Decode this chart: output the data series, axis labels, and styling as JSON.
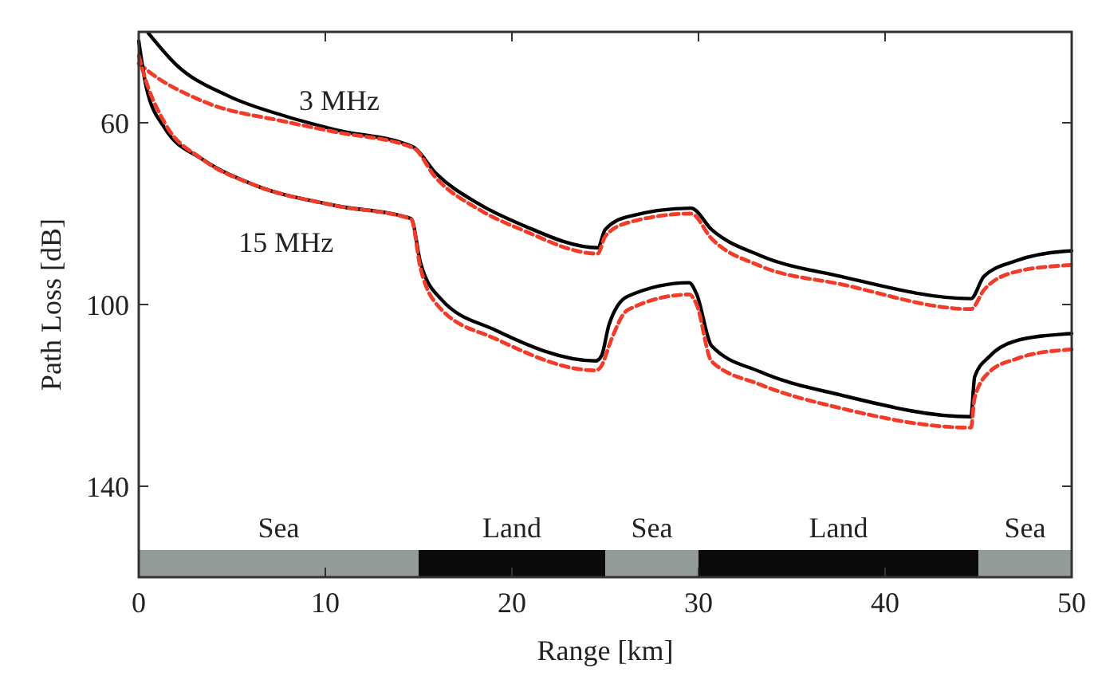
{
  "chart_data": {
    "type": "line",
    "xlabel": "Range [km]",
    "ylabel": "Path Loss [dB]",
    "xlim": [
      0,
      50
    ],
    "xticks": [
      0,
      10,
      20,
      30,
      40,
      50
    ],
    "ylim": [
      160,
      40
    ],
    "yticks": [
      60,
      100,
      140
    ],
    "grid": false,
    "marker": "none",
    "series": [
      {
        "color": "#000000",
        "line_style": "solid",
        "x": [
          0.5,
          2,
          4.8,
          7.9,
          10.5,
          14.7,
          15.9,
          18.2,
          20.5,
          24.6,
          25,
          26.2,
          29.6,
          30.7,
          33.3,
          37.6,
          44.6,
          45.3,
          47,
          49.6,
          50
        ],
        "values": [
          40.2,
          47.2,
          54.1,
          58.6,
          61.5,
          65.3,
          71,
          77.8,
          82.4,
          87.5,
          83.5,
          80.7,
          78.8,
          83.5,
          89.2,
          93.8,
          98.7,
          93.8,
          90.4,
          88.3,
          88.2
        ]
      },
      {
        "color": "#f03c28",
        "line_style": "dashed",
        "x": [
          0,
          0.5,
          3.4,
          7.9,
          10.5,
          14.7,
          15.9,
          18.2,
          20.5,
          24.6,
          25,
          26.2,
          29.6,
          30.7,
          33.3,
          37.6,
          44.6,
          45.3,
          47,
          49.6,
          50
        ],
        "values": [
          46.9,
          48.6,
          55.2,
          59.8,
          62,
          65.5,
          72,
          79,
          83.5,
          88.8,
          85,
          82,
          80,
          85.5,
          91.5,
          95.5,
          101,
          96.8,
          92.8,
          91.4,
          91.3
        ]
      },
      {
        "color": "#000000",
        "line_style": "solid",
        "x": [
          0,
          0.4,
          1.4,
          3.4,
          6.2,
          10.5,
          14.6,
          15.1,
          16.2,
          19.1,
          24.5,
          24.8,
          25.2,
          26.2,
          29.5,
          29.9,
          30.7,
          33.3,
          37.6,
          44.6,
          44.8,
          45.6,
          47,
          49.6,
          50
        ],
        "values": [
          42,
          52.1,
          61.2,
          68,
          73.7,
          78.2,
          81.1,
          90.8,
          98.8,
          105.6,
          112.4,
          111.3,
          104.5,
          98.2,
          95.2,
          97.7,
          109.1,
          114.8,
          119.9,
          124.7,
          115.9,
          111.4,
          108,
          106.5,
          106.4
        ]
      },
      {
        "color": "#f03c28",
        "line_style": "dashed",
        "x": [
          0,
          0.3,
          1.4,
          3.4,
          6.2,
          10.5,
          14.6,
          15.1,
          16.2,
          19.1,
          24.5,
          24.8,
          25.3,
          26.2,
          29.5,
          29.9,
          30.7,
          33.3,
          37.6,
          44.6,
          44.8,
          45.6,
          47,
          49.6,
          50
        ],
        "values": [
          45.3,
          49.7,
          60.1,
          68,
          73.7,
          78.2,
          81.2,
          92,
          101,
          107.5,
          114.5,
          113.5,
          108,
          101.2,
          97.8,
          100,
          112.5,
          117.6,
          122.8,
          127.1,
          120.5,
          114.8,
          112,
          110,
          109.9
        ]
      }
    ],
    "bands": [
      {
        "axis": "x",
        "from": 0,
        "to": 15,
        "label": "Sea",
        "color": "#939c98"
      },
      {
        "axis": "x",
        "from": 15,
        "to": 25,
        "label": "Land",
        "color": "#0a0a0a"
      },
      {
        "axis": "x",
        "from": 25,
        "to": 30,
        "label": "Sea",
        "color": "#939c98"
      },
      {
        "axis": "x",
        "from": 30,
        "to": 45,
        "label": "Land",
        "color": "#0a0a0a"
      },
      {
        "axis": "x",
        "from": 45,
        "to": 50,
        "label": "Sea",
        "color": "#939c98"
      }
    ],
    "annotations": [
      "3 MHz",
      "15 MHz"
    ]
  }
}
